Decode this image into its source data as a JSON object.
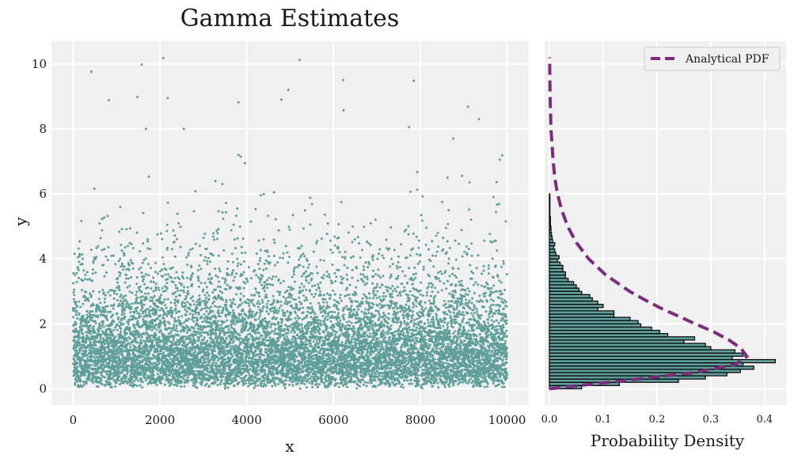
{
  "chart_data": [
    {
      "type": "scatter",
      "title": "Gamma Estimates",
      "xlabel": "x",
      "ylabel": "y",
      "xlim": [
        -500,
        10500
      ],
      "ylim": [
        -0.5,
        10.7
      ],
      "xticks": [
        0,
        2000,
        4000,
        6000,
        8000,
        10000
      ],
      "xtick_labels": [
        "0",
        "2000",
        "4000",
        "6000",
        "8000",
        "10000"
      ],
      "yticks": [
        0,
        2,
        4,
        6,
        8,
        10
      ],
      "ytick_labels": [
        "0",
        "2",
        "4",
        "6",
        "8",
        "10"
      ],
      "grid": true,
      "point_count": 10000,
      "marker_color": "#5f9e9a",
      "sample_points": [
        [
          420,
          9.76
        ],
        [
          1580,
          9.98
        ],
        [
          2080,
          10.18
        ],
        [
          5220,
          10.12
        ],
        [
          4960,
          9.2
        ],
        [
          6220,
          9.5
        ],
        [
          7850,
          9.48
        ],
        [
          820,
          8.88
        ],
        [
          1480,
          8.98
        ],
        [
          2180,
          8.95
        ],
        [
          3810,
          8.82
        ],
        [
          4800,
          8.9
        ],
        [
          6230,
          8.57
        ],
        [
          9100,
          8.68
        ],
        [
          9350,
          8.3
        ],
        [
          1680,
          8.0
        ],
        [
          2550,
          8.0
        ],
        [
          7740,
          8.05
        ],
        [
          8760,
          7.7
        ],
        [
          9830,
          7.05
        ]
      ]
    },
    {
      "type": "histogram",
      "orientation": "horizontal",
      "xlabel": "Probability Density",
      "xlim": [
        0,
        0.44
      ],
      "xticks": [
        0.0,
        0.1,
        0.2,
        0.3,
        0.4
      ],
      "xtick_labels": [
        "0.0",
        "0.1",
        "0.2",
        "0.3",
        "0.4"
      ],
      "ylim": [
        -0.5,
        10.7
      ],
      "bin_width": 0.1,
      "bin_start": 0.0,
      "bar_color": "#5f9e9a",
      "bar_edge_color": "#000000",
      "densities": [
        0.06,
        0.13,
        0.24,
        0.29,
        0.33,
        0.355,
        0.38,
        0.36,
        0.42,
        0.34,
        0.36,
        0.345,
        0.3,
        0.29,
        0.25,
        0.27,
        0.22,
        0.205,
        0.19,
        0.17,
        0.165,
        0.15,
        0.12,
        0.12,
        0.09,
        0.1,
        0.09,
        0.08,
        0.075,
        0.06,
        0.055,
        0.05,
        0.045,
        0.035,
        0.03,
        0.03,
        0.025,
        0.025,
        0.02,
        0.015,
        0.018,
        0.012,
        0.01,
        0.008,
        0.01,
        0.006,
        0.005,
        0.004,
        0.003,
        0.003,
        0.002,
        0.002,
        0.002,
        0.001,
        0.001,
        0.001,
        0.001,
        0.001,
        0.001,
        0.001
      ],
      "pdf": {
        "name": "Analytical PDF",
        "color": "#7b2d7b",
        "style": "dashed",
        "y": [
          0.0,
          0.25,
          0.5,
          0.75,
          1.0,
          1.25,
          1.5,
          1.75,
          2.0,
          2.25,
          2.5,
          2.75,
          3.0,
          3.5,
          4.0,
          4.5,
          5.0,
          5.5,
          6.0,
          6.5,
          7.0,
          8.0,
          9.0,
          10.2
        ],
        "x": [
          0.0,
          0.138,
          0.27,
          0.346,
          0.367,
          0.356,
          0.334,
          0.306,
          0.271,
          0.238,
          0.205,
          0.176,
          0.149,
          0.105,
          0.073,
          0.05,
          0.034,
          0.023,
          0.015,
          0.01,
          0.007,
          0.003,
          0.0013,
          0.0005
        ]
      },
      "legend": {
        "entries": [
          "Analytical PDF"
        ],
        "location": "top-right"
      }
    }
  ]
}
